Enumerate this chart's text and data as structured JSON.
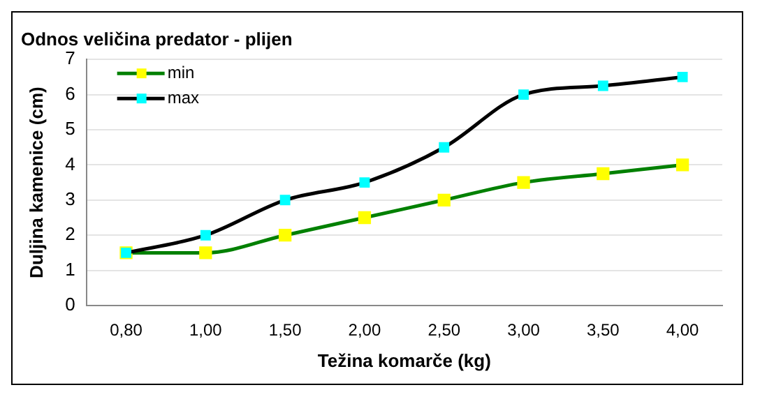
{
  "chart_data": {
    "type": "line",
    "title": "Odnos veličina predator - plijen",
    "xlabel": "Težina komarče (kg)",
    "ylabel": "Duljina kamenice (cm)",
    "categories": [
      "0,80",
      "1,00",
      "1,50",
      "2,00",
      "2,50",
      "3,00",
      "3,50",
      "4,00"
    ],
    "series": [
      {
        "name": "min",
        "color": "#008000",
        "colors": [
          "#ffff00",
          "#ffff00",
          "#ffff00",
          "#ffff00",
          "#ffff00",
          "#ffff00",
          "#ffff00",
          "#ffff00"
        ],
        "values": [
          1.5,
          1.5,
          2,
          2.5,
          3,
          3.5,
          3.75,
          4
        ]
      },
      {
        "name": "max",
        "color": "#000000",
        "colors": [
          "#00ffff",
          "#00ffff",
          "#00ffff",
          "#00ffff",
          "#00ffff",
          "#00ffff",
          "#00ffff",
          "#00ffff"
        ],
        "values": [
          1.5,
          2,
          3,
          3.5,
          4.5,
          6,
          6.25,
          6.5
        ]
      }
    ],
    "ylim": [
      0,
      7
    ],
    "yticks": [
      0,
      1,
      2,
      3,
      4,
      5,
      6,
      7
    ],
    "grid": "y",
    "legend": "top left",
    "marker": "square",
    "line_style": "solid"
  }
}
